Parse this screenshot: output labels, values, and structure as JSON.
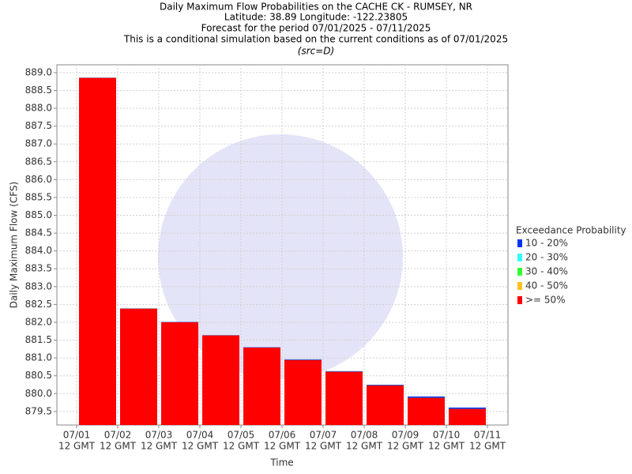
{
  "chart_data": {
    "type": "bar",
    "title": [
      "Daily Maximum Flow Probabilities on the CACHE CK - RUMSEY, NR",
      "Latitude: 38.89 Longitude: -122.23805",
      "Forecast for the period 07/01/2025 - 07/11/2025",
      "This is a conditional simulation based on the current conditions as of 07/01/2025"
    ],
    "subtitle": "(src=D)",
    "y_label": "Daily Maximum Flow (CFS)",
    "x_label": "Time",
    "legend_title": "Exceedance Probability",
    "xticks": [
      [
        "07/01",
        "12 GMT"
      ],
      [
        "07/02",
        "12 GMT"
      ],
      [
        "07/03",
        "12 GMT"
      ],
      [
        "07/04",
        "12 GMT"
      ],
      [
        "07/05",
        "12 GMT"
      ],
      [
        "07/06",
        "12 GMT"
      ],
      [
        "07/07",
        "12 GMT"
      ],
      [
        "07/08",
        "12 GMT"
      ],
      [
        "07/09",
        "12 GMT"
      ],
      [
        "07/10",
        "12 GMT"
      ],
      [
        "07/11",
        "12 GMT"
      ]
    ],
    "series": [
      {
        "name": "10 - 20%",
        "color": "#0033ff",
        "values": [
          888.86,
          882.39,
          882.01,
          881.64,
          881.3,
          880.96,
          880.63,
          880.25,
          879.92,
          879.61
        ]
      },
      {
        "name": "20 - 30%",
        "color": "#33ffff",
        "values": [
          888.85,
          882.38,
          882.0,
          881.63,
          881.29,
          880.94,
          880.61,
          880.23,
          879.88,
          879.57
        ]
      },
      {
        "name": "30 - 40%",
        "color": "#33ff33",
        "values": [
          888.85,
          882.38,
          882.0,
          881.63,
          881.29,
          880.94,
          880.61,
          880.23,
          879.88,
          879.57
        ]
      },
      {
        "name": "40 - 50%",
        "color": "#ffc020",
        "values": [
          888.85,
          882.38,
          882.0,
          881.63,
          881.29,
          880.94,
          880.61,
          880.23,
          879.88,
          879.57
        ]
      },
      {
        "name": ">= 50%",
        "color": "#ff0000",
        "values": [
          888.85,
          882.38,
          882.0,
          881.63,
          881.29,
          880.94,
          880.61,
          880.23,
          879.88,
          879.57
        ]
      }
    ],
    "ylim": [
      879.12,
      889.22
    ],
    "yticks": [
      879.5,
      {
        "value": 880,
        "label": "880.0"
      },
      880.5,
      {
        "value": 881,
        "label": "881.0"
      },
      881.5,
      {
        "value": 882,
        "label": "882.0"
      },
      882.5,
      {
        "value": 883,
        "label": "883.0"
      },
      883.5,
      {
        "value": 884,
        "label": "884.0"
      },
      884.5,
      {
        "value": 885,
        "label": "885.0"
      },
      885.5,
      {
        "value": 886,
        "label": "886.0"
      },
      886.5,
      {
        "value": 887,
        "label": "887.0"
      },
      887.5,
      {
        "value": 888,
        "label": "888.0"
      },
      888.5,
      {
        "value": 889,
        "label": "889.0"
      }
    ],
    "grid": true
  }
}
